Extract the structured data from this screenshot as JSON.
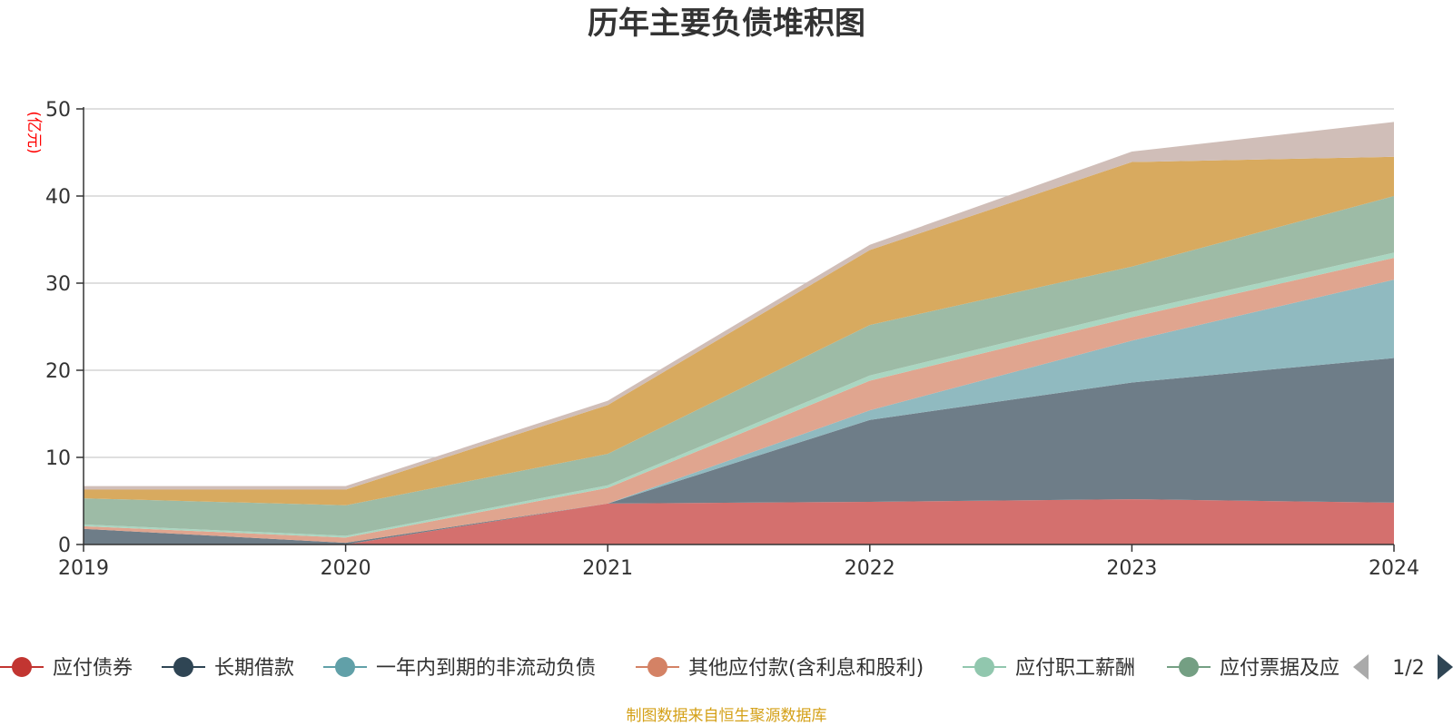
{
  "chart_data": {
    "type": "area",
    "stacked": true,
    "title": "历年主要负债堆积图",
    "ylabel": "(亿元)",
    "xlabel": "",
    "ylim": [
      0,
      50
    ],
    "y_ticks": [
      0,
      10,
      20,
      30,
      40,
      50
    ],
    "grid": true,
    "categories": [
      "2019",
      "2020",
      "2021",
      "2022",
      "2023",
      "2024"
    ],
    "series": [
      {
        "name": "应付债券",
        "color": "#c23531",
        "area_color": "#d4706e",
        "values": [
          0,
          0,
          4.7,
          4.9,
          5.2,
          4.8
        ]
      },
      {
        "name": "长期借款",
        "color": "#2f4554",
        "area_color": "#6e7d88",
        "values": [
          1.8,
          0.2,
          0,
          9.4,
          13.4,
          16.6
        ]
      },
      {
        "name": "一年内到期的非流动负债",
        "color": "#61a0a8",
        "area_color": "#90bac0",
        "values": [
          0,
          0,
          0,
          1.1,
          4.8,
          9.0
        ]
      },
      {
        "name": "其他应付款(含利息和股利)",
        "color": "#d48265",
        "area_color": "#e0a58f",
        "values": [
          0.3,
          0.6,
          1.8,
          3.4,
          2.7,
          2.5
        ]
      },
      {
        "name": "应付职工薪酬",
        "color": "#91c7ae",
        "area_color": "#aad6c1",
        "values": [
          0.2,
          0.2,
          0.3,
          0.6,
          0.6,
          0.6
        ]
      },
      {
        "name": "应付票据及应付账款",
        "color": "#749f83",
        "area_color": "#9dbba6",
        "values": [
          3.0,
          3.5,
          3.6,
          5.8,
          5.2,
          6.5
        ]
      },
      {
        "name": "",
        "color": "#ca8622",
        "area_color": "#d8aa5f",
        "values": [
          1.0,
          1.8,
          5.6,
          8.6,
          12.0,
          4.5
        ]
      },
      {
        "name": "",
        "color": "#bda29a",
        "area_color": "#d0beb8",
        "values": [
          0.4,
          0.4,
          0.5,
          0.6,
          1.2,
          4.0
        ]
      }
    ],
    "legend": {
      "placement": "bottom",
      "page": "1/2",
      "visible_labels": [
        "应付债券",
        "长期借款",
        "一年内到期的非流动负债",
        "其他应付款(含利息和股利)",
        "应付职工薪酬",
        "应付票据及应"
      ]
    },
    "source_note": "制图数据来自恒生聚源数据库",
    "colors": {
      "title": "#333333",
      "ylabel": "#ff0000",
      "source_note": "#d4a017",
      "grid": "#cccccc",
      "axis": "#333333",
      "pager_inactive": "#aaaaaa",
      "pager_active": "#2f4554"
    }
  }
}
